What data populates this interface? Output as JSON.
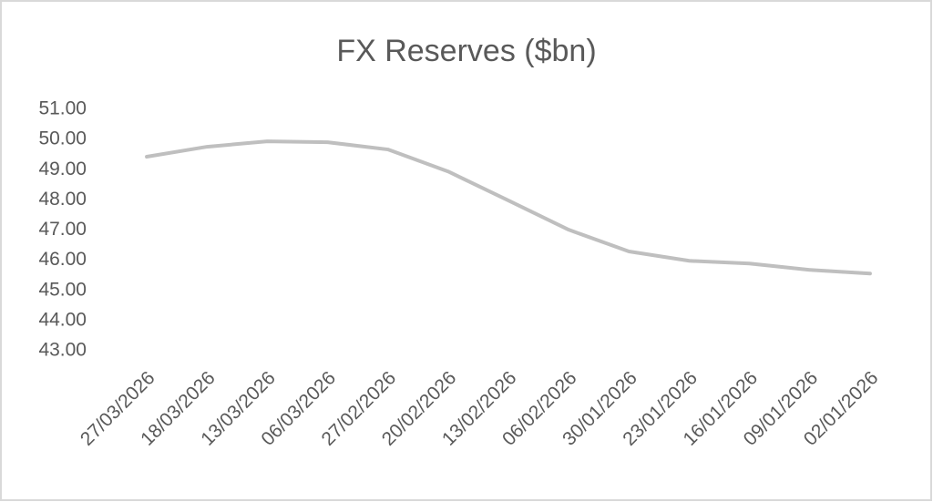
{
  "chart_data": {
    "type": "line",
    "title": "FX Reserves ($bn)",
    "categories": [
      "27/03/2026",
      "18/03/2026",
      "13/03/2026",
      "06/03/2026",
      "27/02/2026",
      "20/02/2026",
      "13/02/2026",
      "06/02/2026",
      "30/01/2026",
      "23/01/2026",
      "16/01/2026",
      "09/01/2026",
      "02/01/2026"
    ],
    "values": [
      49.43,
      49.76,
      49.94,
      49.91,
      49.67,
      48.94,
      47.98,
      47.01,
      46.29,
      45.98,
      45.89,
      45.68,
      45.56
    ],
    "color": "#bfbfbf",
    "ylim": [
      43,
      51
    ],
    "yticks": [
      {
        "value": 43,
        "label": "43.00"
      },
      {
        "value": 44,
        "label": "44.00"
      },
      {
        "value": 45,
        "label": "45.00"
      },
      {
        "value": 46,
        "label": "46.00"
      },
      {
        "value": 47,
        "label": "47.00"
      },
      {
        "value": 48,
        "label": "48.00"
      },
      {
        "value": 49,
        "label": "49.00"
      },
      {
        "value": 50,
        "label": "50.00"
      },
      {
        "value": 51,
        "label": "51.00"
      }
    ],
    "grid": false
  }
}
